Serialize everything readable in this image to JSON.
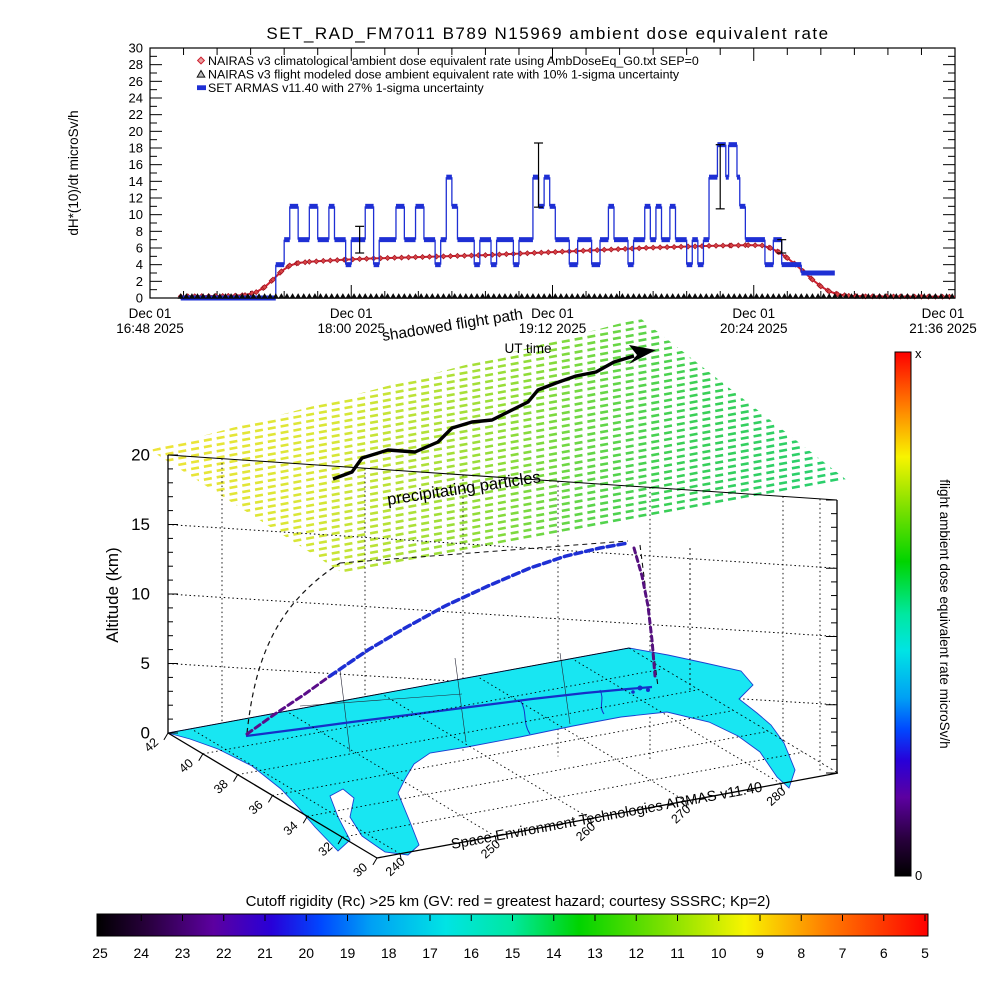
{
  "title": "SET_RAD_FM7011  B789 N15969 ambient dose equivalent rate",
  "top_chart": {
    "y_axis": {
      "label": "dH*(10)/dt microSv/h",
      "min": 0,
      "max": 30,
      "major_step": 2
    },
    "x_axis": {
      "title": "UT time",
      "span_minutes": 288,
      "minor_step_minutes": 12,
      "major_ticks": [
        {
          "minute": 0,
          "line1": "Dec 01",
          "line2": "16:48 2025"
        },
        {
          "minute": 72,
          "line1": "Dec 01",
          "line2": "18:00 2025"
        },
        {
          "minute": 144,
          "line1": "Dec 01",
          "line2": "19:12 2025"
        },
        {
          "minute": 216,
          "line1": "Dec 01",
          "line2": "20:24 2025"
        },
        {
          "minute": 288,
          "line1": "Dec 01",
          "line2": "21:36 2025"
        }
      ]
    },
    "legend": [
      {
        "marker": "diamond",
        "color": "#cf2030",
        "label": "NAIRAS v3 climatological ambient dose equivalent rate using AmbDoseEq_G0.txt SEP=0"
      },
      {
        "marker": "triangle",
        "color": "#101010",
        "label": "NAIRAS v3 flight modeled dose ambient equivalent rate with 10% 1-sigma uncertainty"
      },
      {
        "marker": "square",
        "color": "#1e2fd4",
        "label": "SET ARMAS v11.40 with 27% 1-sigma uncertainty"
      }
    ]
  },
  "chart_data": {
    "type": "line",
    "x_unit": "minutes after Dec 01 16:48 2025 UT",
    "ylabel": "dH*(10)/dt microSv/h",
    "ylim": [
      0,
      30
    ],
    "series": [
      {
        "name": "SET ARMAS v11.40 measured dose rate",
        "marker": "square",
        "color": "#1e2fd4",
        "style": "steps",
        "segments": [
          [
            11,
            45,
            0
          ],
          [
            45,
            48,
            4
          ],
          [
            48,
            50,
            7
          ],
          [
            50,
            53,
            11
          ],
          [
            53,
            57,
            7
          ],
          [
            57,
            60,
            11
          ],
          [
            60,
            64,
            7
          ],
          [
            64,
            66,
            11
          ],
          [
            66,
            70,
            7
          ],
          [
            70,
            72,
            4
          ],
          [
            72,
            77,
            7
          ],
          [
            77,
            80,
            11
          ],
          [
            80,
            82,
            4
          ],
          [
            82,
            88,
            7
          ],
          [
            88,
            91,
            11
          ],
          [
            91,
            95,
            7
          ],
          [
            95,
            98,
            11
          ],
          [
            98,
            102,
            7
          ],
          [
            102,
            104,
            4
          ],
          [
            104,
            106,
            7
          ],
          [
            106,
            108,
            14.5
          ],
          [
            108,
            110,
            11
          ],
          [
            110,
            116,
            7
          ],
          [
            116,
            118,
            4
          ],
          [
            118,
            122,
            7
          ],
          [
            122,
            124,
            4
          ],
          [
            124,
            130,
            7
          ],
          [
            130,
            132,
            4
          ],
          [
            132,
            137,
            7
          ],
          [
            137,
            139,
            14.5
          ],
          [
            139,
            141,
            11
          ],
          [
            141,
            143,
            14.5
          ],
          [
            143,
            145,
            11
          ],
          [
            145,
            150,
            7
          ],
          [
            150,
            153,
            4
          ],
          [
            153,
            158,
            7
          ],
          [
            158,
            161,
            4
          ],
          [
            161,
            164,
            7
          ],
          [
            164,
            166,
            11
          ],
          [
            166,
            171,
            7
          ],
          [
            171,
            173,
            4
          ],
          [
            173,
            177,
            7
          ],
          [
            177,
            179,
            11
          ],
          [
            179,
            181,
            7
          ],
          [
            181,
            183,
            11
          ],
          [
            183,
            186,
            7
          ],
          [
            186,
            188,
            11
          ],
          [
            188,
            192,
            7
          ],
          [
            192,
            194,
            4
          ],
          [
            194,
            196,
            7
          ],
          [
            196,
            198,
            4
          ],
          [
            198,
            200,
            7
          ],
          [
            200,
            203,
            14.5
          ],
          [
            203,
            206,
            18.4
          ],
          [
            206,
            207,
            14.5
          ],
          [
            207,
            210,
            18.4
          ],
          [
            210,
            211,
            14.5
          ],
          [
            211,
            213,
            11
          ],
          [
            213,
            220,
            7
          ],
          [
            220,
            223,
            4
          ],
          [
            223,
            226,
            7
          ],
          [
            226,
            233,
            4
          ],
          [
            233,
            245,
            3
          ]
        ]
      },
      {
        "name": "NAIRAS v3 climatological dose rate",
        "marker": "diamond",
        "color": "#cf2030",
        "style": "line",
        "points": [
          [
            11,
            0.2
          ],
          [
            28,
            0.25
          ],
          [
            34,
            0.35
          ],
          [
            38,
            0.7
          ],
          [
            41,
            1.3
          ],
          [
            44,
            2.2
          ],
          [
            47,
            3.2
          ],
          [
            50,
            3.9
          ],
          [
            53,
            4.2
          ],
          [
            57,
            4.35
          ],
          [
            62,
            4.45
          ],
          [
            70,
            4.6
          ],
          [
            80,
            4.75
          ],
          [
            90,
            4.85
          ],
          [
            100,
            4.95
          ],
          [
            110,
            5.05
          ],
          [
            120,
            5.15
          ],
          [
            130,
            5.3
          ],
          [
            140,
            5.45
          ],
          [
            150,
            5.6
          ],
          [
            160,
            5.75
          ],
          [
            170,
            5.9
          ],
          [
            180,
            6.05
          ],
          [
            190,
            6.15
          ],
          [
            200,
            6.25
          ],
          [
            208,
            6.3
          ],
          [
            214,
            6.35
          ],
          [
            219,
            6.3
          ],
          [
            222,
            6.0
          ],
          [
            225,
            5.5
          ],
          [
            228,
            4.8
          ],
          [
            231,
            4.0
          ],
          [
            234,
            3.1
          ],
          [
            237,
            2.2
          ],
          [
            240,
            1.4
          ],
          [
            243,
            0.8
          ],
          [
            246,
            0.45
          ],
          [
            250,
            0.25
          ],
          [
            256,
            0.2
          ],
          [
            288,
            0.15
          ]
        ]
      },
      {
        "name": "NAIRAS v3 flight modeled dose rate",
        "marker": "triangle",
        "color": "#101010",
        "style": "markers",
        "points": [
          [
            11,
            0.2
          ],
          [
            288,
            0.2
          ]
        ]
      }
    ],
    "error_bars": [
      {
        "series": "SET ARMAS",
        "minute": 75,
        "lo": 5.4,
        "hi": 8.6
      },
      {
        "series": "SET ARMAS",
        "minute": 139,
        "lo": 10.9,
        "hi": 18.6
      },
      {
        "series": "SET ARMAS",
        "minute": 204,
        "lo": 10.7,
        "hi": 18.4
      },
      {
        "series": "NAIRAS climatological",
        "minute": 226,
        "lo": 5.4,
        "hi": 7.0
      }
    ]
  },
  "plot3d": {
    "altitude_axis": {
      "label": "Altitude (km)",
      "ticks": [
        0,
        5,
        10,
        15,
        20
      ]
    },
    "latitude_ticks": [
      42,
      40,
      38,
      36,
      34,
      32,
      30
    ],
    "longitude_ticks": [
      240,
      250,
      260,
      270,
      280
    ],
    "annotations": {
      "shadowed_path": "shadowed flight path",
      "precipitating": "precipitating particles",
      "credit": "Space Environment Technologies ARMAS v11.40"
    }
  },
  "right_colorbar": {
    "title": "flight ambient dose equivalent rate microSv/h",
    "top_label": "x",
    "bottom_label": "0",
    "stops": [
      [
        0,
        "#fe0000"
      ],
      [
        0.1,
        "#ff7a00"
      ],
      [
        0.2,
        "#f8f400"
      ],
      [
        0.3,
        "#7ae000"
      ],
      [
        0.4,
        "#00d400"
      ],
      [
        0.5,
        "#00e8a0"
      ],
      [
        0.57,
        "#00e4e4"
      ],
      [
        0.66,
        "#00a0f4"
      ],
      [
        0.72,
        "#0048ff"
      ],
      [
        0.78,
        "#2800d8"
      ],
      [
        0.85,
        "#5c00a0"
      ],
      [
        0.93,
        "#28003c"
      ],
      [
        1,
        "#000000"
      ]
    ]
  },
  "bottom_colorbar": {
    "title": "Cutoff rigidity (Rc) >25 km (GV: red = greatest hazard; courtesy SSSRC; Kp=2)",
    "title_color": "#e02020",
    "ticks": [
      25,
      24,
      23,
      22,
      21,
      20,
      19,
      18,
      17,
      16,
      15,
      14,
      13,
      12,
      11,
      10,
      9,
      8,
      7,
      6,
      5
    ],
    "stops": [
      [
        0,
        "#000000"
      ],
      [
        0.06,
        "#28003c"
      ],
      [
        0.14,
        "#5c00a0"
      ],
      [
        0.21,
        "#2800d8"
      ],
      [
        0.27,
        "#0048ff"
      ],
      [
        0.33,
        "#00a0f4"
      ],
      [
        0.42,
        "#00e4e4"
      ],
      [
        0.5,
        "#00e8a0"
      ],
      [
        0.58,
        "#00d400"
      ],
      [
        0.68,
        "#7ae000"
      ],
      [
        0.78,
        "#f8f400"
      ],
      [
        0.88,
        "#ff7a00"
      ],
      [
        1,
        "#fe0000"
      ]
    ]
  }
}
